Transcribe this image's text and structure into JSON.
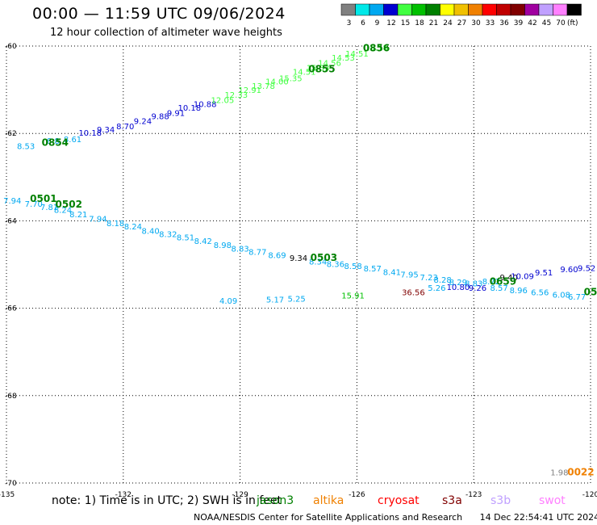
{
  "header": {
    "title": "00:00 — 11:59 UTC 09/06/2024",
    "subtitle": "12 hour collection of altimeter wave heights"
  },
  "legend": {
    "unit": "(ft)",
    "bins": [
      {
        "label": "3",
        "color": "#808080"
      },
      {
        "label": "6",
        "color": "#00e8e8"
      },
      {
        "label": "9",
        "color": "#00a8f0"
      },
      {
        "label": "12",
        "color": "#0000d0"
      },
      {
        "label": "15",
        "color": "#40ff40"
      },
      {
        "label": "18",
        "color": "#00c000"
      },
      {
        "label": "21",
        "color": "#008000"
      },
      {
        "label": "24",
        "color": "#ffff00"
      },
      {
        "label": "27",
        "color": "#f0c000"
      },
      {
        "label": "30",
        "color": "#f08000"
      },
      {
        "label": "33",
        "color": "#ff0000"
      },
      {
        "label": "36",
        "color": "#c00000"
      },
      {
        "label": "39",
        "color": "#800000"
      },
      {
        "label": "42",
        "color": "#a000a0"
      },
      {
        "label": "45",
        "color": "#c0a0ff"
      },
      {
        "label": "70",
        "color": "#ff80ff"
      },
      {
        "label": "",
        "color": "#000000"
      }
    ]
  },
  "footer": {
    "note": "note: 1) Time is in UTC; 2) SWH is in feet",
    "credit": "NOAA/NESDIS Center for Satellite Applications and Research",
    "generated": "14 Dec 22:54:41 UTC 2024",
    "satellites": [
      {
        "name": "jason3",
        "color": "#008000"
      },
      {
        "name": "altika",
        "color": "#f08000"
      },
      {
        "name": "cryosat",
        "color": "#ff0000"
      },
      {
        "name": "s3a",
        "color": "#800000"
      },
      {
        "name": "s3b",
        "color": "#c0a0ff"
      },
      {
        "name": "swot",
        "color": "#ff80ff"
      }
    ]
  },
  "chart_data": {
    "type": "scatter",
    "xlabel": "",
    "ylabel": "",
    "xlim": [
      -135,
      -120
    ],
    "ylim": [
      -70,
      -60
    ],
    "x_ticks": [
      -135,
      -132,
      -129,
      -126,
      -123,
      -120
    ],
    "x_tick_labels": [
      "-135",
      "-132",
      "-129",
      "-126",
      "-123",
      "-120"
    ],
    "y_ticks": [
      -60,
      -62,
      -64,
      -66,
      -68,
      -70
    ],
    "y_tick_labels": [
      "-60",
      "-62",
      "-64",
      "-66",
      "-68",
      "-70"
    ],
    "grid": true,
    "points": [
      {
        "x": -134.5,
        "y": -62.36,
        "v": "8.53",
        "c": "#00a8f0"
      },
      {
        "x": -133.8,
        "y": -62.24,
        "v": "8.8",
        "c": "#00a8f0"
      },
      {
        "x": -133.3,
        "y": -62.2,
        "v": "8.61",
        "c": "#00a8f0"
      },
      {
        "x": -132.85,
        "y": -62.05,
        "v": "10.18",
        "c": "#0000d0"
      },
      {
        "x": -132.45,
        "y": -61.98,
        "v": "9.34",
        "c": "#0000d0"
      },
      {
        "x": -131.95,
        "y": -61.9,
        "v": "8.70",
        "c": "#0000d0"
      },
      {
        "x": -131.5,
        "y": -61.78,
        "v": "9.24",
        "c": "#0000d0"
      },
      {
        "x": -131.05,
        "y": -61.67,
        "v": "9.88",
        "c": "#0000d0"
      },
      {
        "x": -130.65,
        "y": -61.6,
        "v": "9.91",
        "c": "#0000d0"
      },
      {
        "x": -130.3,
        "y": -61.48,
        "v": "10.18",
        "c": "#0000d0"
      },
      {
        "x": -129.9,
        "y": -61.4,
        "v": "10.88",
        "c": "#0000d0"
      },
      {
        "x": -129.45,
        "y": -61.3,
        "v": "12.05",
        "c": "#40ff40"
      },
      {
        "x": -129.1,
        "y": -61.18,
        "v": "12.33",
        "c": "#40ff40"
      },
      {
        "x": -128.75,
        "y": -61.07,
        "v": "12.91",
        "c": "#40ff40"
      },
      {
        "x": -128.4,
        "y": -60.98,
        "v": "13.78",
        "c": "#40ff40"
      },
      {
        "x": -128.05,
        "y": -60.88,
        "v": "14.00",
        "c": "#40ff40"
      },
      {
        "x": -127.7,
        "y": -60.8,
        "v": "15.35",
        "c": "#40ff40"
      },
      {
        "x": -127.35,
        "y": -60.66,
        "v": "14.51",
        "c": "#40ff40"
      },
      {
        "x": -127.0,
        "y": -60.56,
        "v": "15.33",
        "c": "#40ff40"
      },
      {
        "x": -126.7,
        "y": -60.45,
        "v": "14.56",
        "c": "#40ff40"
      },
      {
        "x": -126.35,
        "y": -60.33,
        "v": "14.53",
        "c": "#40ff40"
      },
      {
        "x": -126.0,
        "y": -60.24,
        "v": "14.51",
        "c": "#40ff40"
      },
      {
        "x": -125.5,
        "y": -60.1,
        "v": "15.18",
        "c": "#40ff40"
      },
      {
        "x": -134.85,
        "y": -63.6,
        "v": "7.94",
        "c": "#00a8f0"
      },
      {
        "x": -134.3,
        "y": -63.68,
        "v": "7.70",
        "c": "#00a8f0"
      },
      {
        "x": -133.9,
        "y": -63.75,
        "v": "7.81",
        "c": "#00a8f0"
      },
      {
        "x": -133.55,
        "y": -63.82,
        "v": "8.24",
        "c": "#00a8f0"
      },
      {
        "x": -133.15,
        "y": -63.92,
        "v": "8.21",
        "c": "#00a8f0"
      },
      {
        "x": -132.65,
        "y": -64.02,
        "v": "7.94",
        "c": "#00a8f0"
      },
      {
        "x": -132.2,
        "y": -64.12,
        "v": "8.18",
        "c": "#00a8f0"
      },
      {
        "x": -131.75,
        "y": -64.2,
        "v": "8.24",
        "c": "#00a8f0"
      },
      {
        "x": -131.3,
        "y": -64.3,
        "v": "8.40",
        "c": "#00a8f0"
      },
      {
        "x": -130.85,
        "y": -64.37,
        "v": "8.32",
        "c": "#00a8f0"
      },
      {
        "x": -130.4,
        "y": -64.45,
        "v": "8.51",
        "c": "#00a8f0"
      },
      {
        "x": -129.95,
        "y": -64.53,
        "v": "8.42",
        "c": "#00a8f0"
      },
      {
        "x": -129.45,
        "y": -64.62,
        "v": "8.98",
        "c": "#00a8f0"
      },
      {
        "x": -129.0,
        "y": -64.7,
        "v": "8.83",
        "c": "#00a8f0"
      },
      {
        "x": -128.55,
        "y": -64.78,
        "v": "8.77",
        "c": "#00a8f0"
      },
      {
        "x": -128.05,
        "y": -64.85,
        "v": "8.69",
        "c": "#00a8f0"
      },
      {
        "x": -127.5,
        "y": -64.92,
        "v": "9.34",
        "c": "#000000"
      },
      {
        "x": -127.0,
        "y": -65.0,
        "v": "8.34",
        "c": "#00a8f0"
      },
      {
        "x": -126.55,
        "y": -65.06,
        "v": "8.36",
        "c": "#00a8f0"
      },
      {
        "x": -126.1,
        "y": -65.1,
        "v": "8.58",
        "c": "#00a8f0"
      },
      {
        "x": -125.6,
        "y": -65.16,
        "v": "8.57",
        "c": "#00a8f0"
      },
      {
        "x": -125.1,
        "y": -65.24,
        "v": "8.41",
        "c": "#00a8f0"
      },
      {
        "x": -124.65,
        "y": -65.3,
        "v": "7.95",
        "c": "#00a8f0"
      },
      {
        "x": -124.15,
        "y": -65.36,
        "v": "7.23",
        "c": "#00a8f0"
      },
      {
        "x": -123.8,
        "y": -65.42,
        "v": "8.28",
        "c": "#00a8f0"
      },
      {
        "x": -123.4,
        "y": -65.47,
        "v": "8.29",
        "c": "#00a8f0"
      },
      {
        "x": -123.0,
        "y": -65.5,
        "v": "8.83",
        "c": "#00a8f0"
      },
      {
        "x": -122.55,
        "y": -65.45,
        "v": "8.72",
        "c": "#00a8f0"
      },
      {
        "x": -122.1,
        "y": -65.36,
        "v": "9.40",
        "c": "#000000"
      },
      {
        "x": -121.75,
        "y": -65.33,
        "v": "10.09",
        "c": "#0000d0"
      },
      {
        "x": -121.2,
        "y": -65.25,
        "v": "9.51",
        "c": "#0000d0"
      },
      {
        "x": -120.55,
        "y": -65.18,
        "v": "9.60",
        "c": "#0000d0"
      },
      {
        "x": -120.1,
        "y": -65.15,
        "v": "9.52",
        "c": "#0000d0"
      },
      {
        "x": -123.95,
        "y": -65.6,
        "v": "5.26",
        "c": "#00a8f0"
      },
      {
        "x": -123.4,
        "y": -65.58,
        "v": "10.80",
        "c": "#0000d0"
      },
      {
        "x": -122.9,
        "y": -65.6,
        "v": "9.26",
        "c": "#0000d0"
      },
      {
        "x": -122.35,
        "y": -65.6,
        "v": "8.57",
        "c": "#00a8f0"
      },
      {
        "x": -121.85,
        "y": -65.66,
        "v": "8.96",
        "c": "#00a8f0"
      },
      {
        "x": -121.3,
        "y": -65.7,
        "v": "6.56",
        "c": "#00a8f0"
      },
      {
        "x": -120.75,
        "y": -65.76,
        "v": "6.08",
        "c": "#00a8f0"
      },
      {
        "x": -120.35,
        "y": -65.8,
        "v": "6.77",
        "c": "#00a8f0"
      },
      {
        "x": -124.55,
        "y": -65.7,
        "v": "36.56",
        "c": "#800000"
      },
      {
        "x": -126.1,
        "y": -65.78,
        "v": "15.91",
        "c": "#00c000"
      },
      {
        "x": -127.55,
        "y": -65.85,
        "v": "5.25",
        "c": "#00a8f0"
      },
      {
        "x": -128.1,
        "y": -65.87,
        "v": "5.17",
        "c": "#00a8f0"
      },
      {
        "x": -129.3,
        "y": -65.9,
        "v": "4.09",
        "c": "#00a8f0"
      },
      {
        "x": -120.8,
        "y": -69.82,
        "v": "1.98",
        "c": "#808080"
      }
    ],
    "time_labels": [
      {
        "x": -125.5,
        "y": -60.12,
        "t": "0856"
      },
      {
        "x": -126.9,
        "y": -60.6,
        "t": "0855"
      },
      {
        "x": -133.75,
        "y": -62.28,
        "t": "0854"
      },
      {
        "x": -134.05,
        "y": -63.57,
        "t": "0501"
      },
      {
        "x": -133.4,
        "y": -63.7,
        "t": "0502"
      },
      {
        "x": -126.85,
        "y": -64.92,
        "t": "0503"
      },
      {
        "x": -122.25,
        "y": -65.46,
        "t": "0659"
      },
      {
        "x": -120.0,
        "y": -65.7,
        "t": "05"
      },
      {
        "x": -120.25,
        "y": -69.82,
        "t": "0022"
      }
    ]
  }
}
